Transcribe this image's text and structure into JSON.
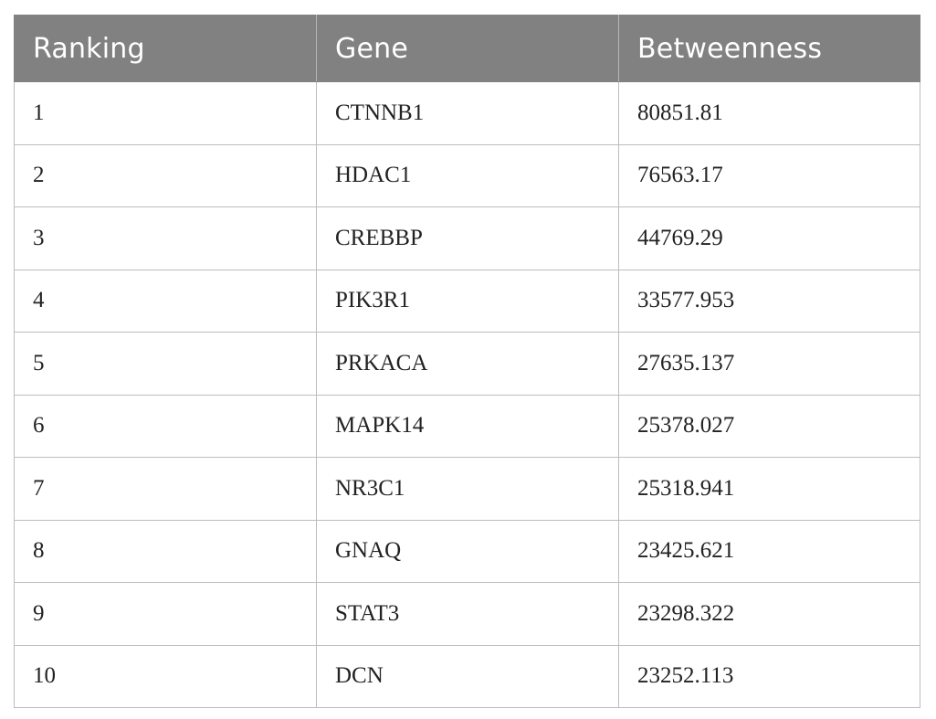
{
  "table": {
    "headers": [
      "Ranking",
      "Gene",
      "Betweenness"
    ],
    "rows": [
      [
        "1",
        "CTNNB1",
        "80851.81"
      ],
      [
        "2",
        "HDAC1",
        "76563.17"
      ],
      [
        "3",
        "CREBBP",
        "44769.29"
      ],
      [
        "4",
        "PIK3R1",
        "33577.953"
      ],
      [
        "5",
        "PRKACA",
        "27635.137"
      ],
      [
        "6",
        "MAPK14",
        "25378.027"
      ],
      [
        "7",
        "NR3C1",
        "25318.941"
      ],
      [
        "8",
        "GNAQ",
        "23425.621"
      ],
      [
        "9",
        "STAT3",
        "23298.322"
      ],
      [
        "10",
        "DCN",
        "23252.113"
      ]
    ]
  },
  "colors": {
    "header_background": "#808180",
    "header_text": "#ffffff",
    "grid_line": "#bdbdbd",
    "body_text": "#222222"
  }
}
